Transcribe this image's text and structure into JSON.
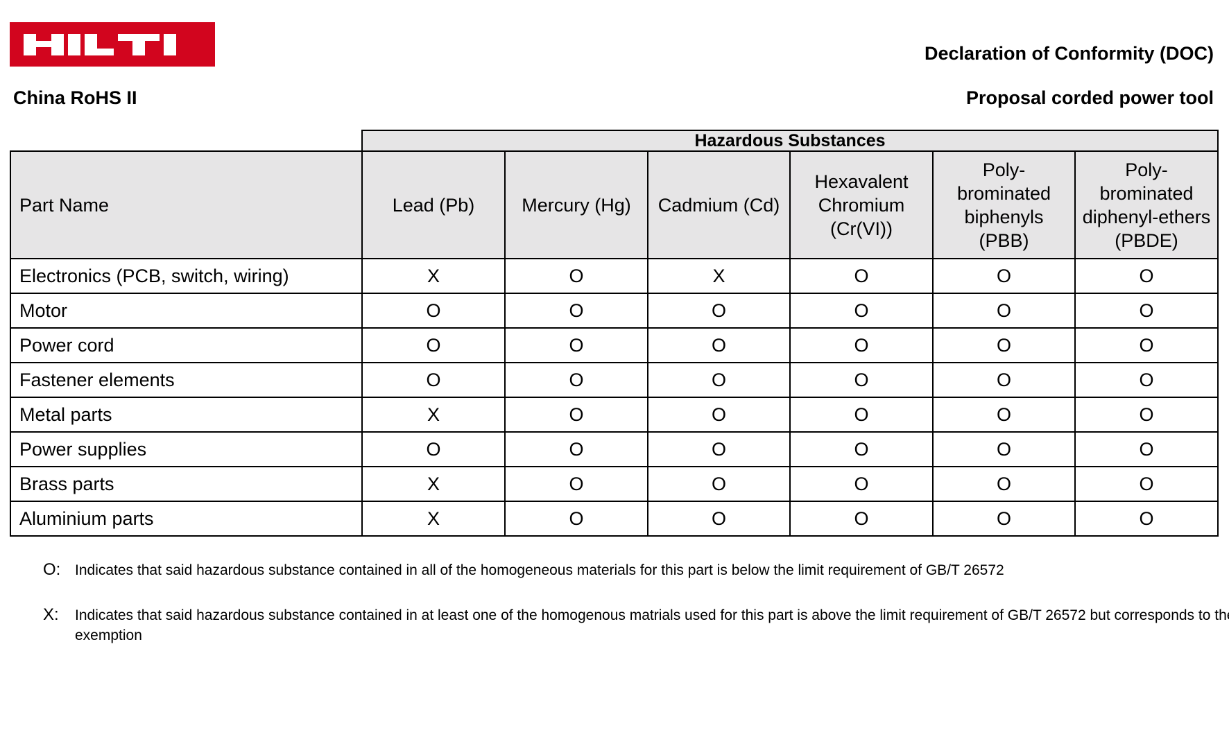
{
  "header": {
    "logo_text": "HILTI",
    "brand_color": "#d2051e",
    "doc_title": "Declaration of Conformity (DOC)",
    "doc_subtitle": "Proposal corded power tool",
    "left_title": "China RoHS II"
  },
  "table": {
    "group_header": "Hazardous Substances",
    "columns": [
      "Part Name",
      "Lead (Pb)",
      "Mercury (Hg)",
      "Cadmium (Cd)",
      "Hexavalent Chromium (Cr(VI))",
      "Poly-brominated biphenyls (PBB)",
      "Poly-brominated diphenyl-ethers (PBDE)"
    ],
    "column_lines": [
      [
        "Part Name"
      ],
      [
        "Lead (Pb)"
      ],
      [
        "Mercury (Hg)"
      ],
      [
        "Cadmium (Cd)"
      ],
      [
        "Hexavalent",
        "Chromium",
        "(Cr(VI))"
      ],
      [
        "Poly-",
        "brominated",
        "biphenyls",
        "(PBB)"
      ],
      [
        "Poly-",
        "brominated",
        "diphenyl-ethers",
        "(PBDE)"
      ]
    ],
    "rows": [
      [
        "Electronics (PCB, switch, wiring)",
        "X",
        "O",
        "X",
        "O",
        "O",
        "O"
      ],
      [
        "Motor",
        "O",
        "O",
        "O",
        "O",
        "O",
        "O"
      ],
      [
        "Power cord",
        "O",
        "O",
        "O",
        "O",
        "O",
        "O"
      ],
      [
        "Fastener elements",
        "O",
        "O",
        "O",
        "O",
        "O",
        "O"
      ],
      [
        "Metal parts",
        "X",
        "O",
        "O",
        "O",
        "O",
        "O"
      ],
      [
        "Power supplies",
        "O",
        "O",
        "O",
        "O",
        "O",
        "O"
      ],
      [
        "Brass parts",
        "X",
        "O",
        "O",
        "O",
        "O",
        "O"
      ],
      [
        "Aluminium parts",
        "X",
        "O",
        "O",
        "O",
        "O",
        "O"
      ]
    ]
  },
  "notes": [
    {
      "symbol": "O:",
      "text": "Indicates that said hazardous substance contained in all of the homogeneous materials for this part is below the limit requirement of GB/T 26572"
    },
    {
      "symbol": "X:",
      "text": "Indicates that said hazardous substance contained in at least one of the homogenous matrials used for this part is above the limit requirement of GB/T 26572 but corresponds to the exemption"
    }
  ]
}
